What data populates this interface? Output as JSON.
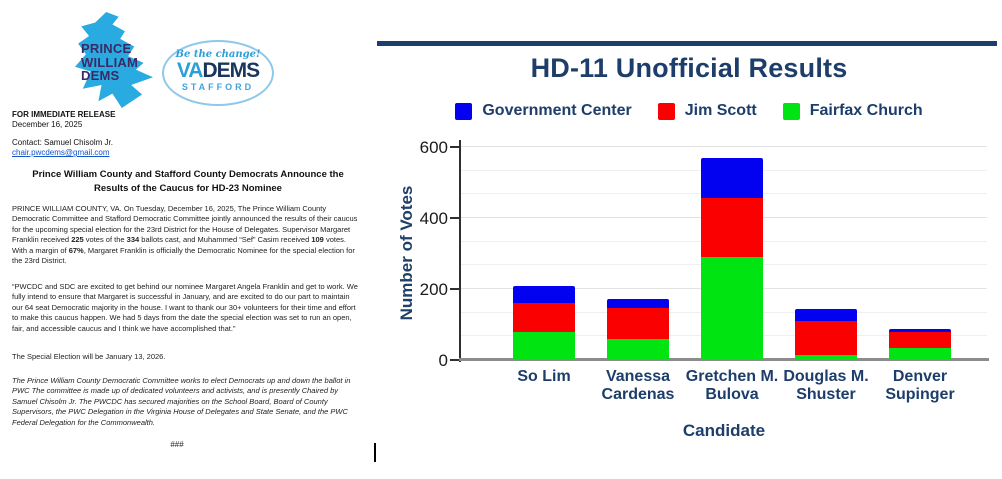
{
  "doc": {
    "logos": {
      "pwd": {
        "line1": "PRINCE",
        "line2": "WILLIAM",
        "line3": "DEMS"
      },
      "vadems": {
        "tagline": "Be the change!",
        "va": "VA",
        "dems": "DEMS",
        "sub": "STAFFORD"
      }
    },
    "release_label": "FOR IMMEDIATE RELEASE",
    "release_date": "December 16, 2025",
    "contact_label": "Contact: Samuel Chisolm Jr.",
    "contact_email": "chair.pwcdems@gmail.com",
    "title": "Prince William County and Stafford County Democrats Announce the Results of the Caucus for HD-23 Nominee",
    "para1_rich": [
      {
        "t": "PRINCE WILLIAM COUNTY, VA. On Tuesday, December 16, 2025, The Prince William County Democratic Committee and Stafford Democratic Committee jointly announced the results of their caucus for the upcoming special election for the 23rd District for the House of Delegates. Supervisor Margaret Franklin received "
      },
      {
        "t": "225",
        "b": true
      },
      {
        "t": " votes of the "
      },
      {
        "t": "334",
        "b": true
      },
      {
        "t": " ballots cast, and Muhammed “Sef” Casim received "
      },
      {
        "t": "109",
        "b": true
      },
      {
        "t": " votes. With a margin of "
      },
      {
        "t": "67%",
        "b": true
      },
      {
        "t": ", Margaret Franklin is officially the Democratic Nominee for the special election for the 23rd District."
      }
    ],
    "para2": "“PWCDC and SDC are excited to get behind our nominee Margaret Angela Franklin and get to work. We fully intend to ensure that Margaret is successful in January, and are excited to do our part to maintain our 64 seat Democratic majority in the house. I want to thank our 30+ volunteers for their time and effort to make this caucus happen. We had 5 days from the date the special election was set to run an open, fair, and accessible caucus and I think we have accomplished that.”",
    "para3": "The Special Election will be January 13, 2026.",
    "para4": "The Prince William County Democratic Committee works to elect Democrats up and down the ballot in PWC The committee is made up of dedicated volunteers and activists, and is presently Chaired by Samuel Chisolm Jr. The PWCDC has secured majorities on the School Board, Board of County Supervisors, the PWC Delegation in the Virginia House of Delegates and State Senate, and the PWC Federal Delegation for the Commonwealth.",
    "end_mark": "###"
  },
  "chart_data": {
    "type": "bar",
    "stacked": true,
    "title": "HD-11 Unofficial Results",
    "xlabel": "Candidate",
    "ylabel": "Number of Votes",
    "ylim": [
      0,
      600
    ],
    "yticks": [
      0,
      200,
      400,
      600
    ],
    "grid": true,
    "legend_position": "top",
    "categories": [
      "So Lim",
      "Vanessa Cardenas",
      "Gretchen M. Bulova",
      "Douglas M. Shuster",
      "Denver Supinger"
    ],
    "series": [
      {
        "name": "Government Center",
        "color": "#0202f0",
        "values": [
          46,
          27,
          113,
          34,
          9
        ]
      },
      {
        "name": "Jim Scott",
        "color": "#fb0000",
        "values": [
          84,
          87,
          166,
          98,
          43
        ]
      },
      {
        "name": "Fairfax Church",
        "color": "#00e512",
        "values": [
          78,
          59,
          290,
          13,
          35
        ]
      }
    ],
    "colors": {
      "accent_navy": "#1d3e6a"
    }
  }
}
